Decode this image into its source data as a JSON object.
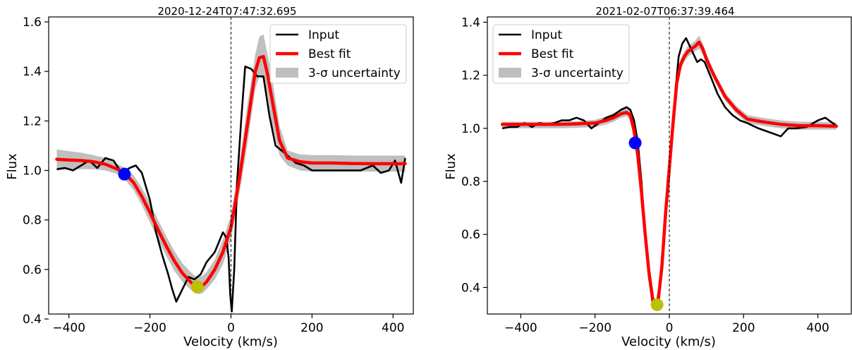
{
  "chart_data": [
    {
      "type": "line",
      "title": "2020-12-24T07:47:32.695",
      "xlabel": "Velocity (km/s)",
      "ylabel": "Flux",
      "xlim": [
        -450,
        450
      ],
      "ylim": [
        0.42,
        1.62
      ],
      "xticks": [
        -400,
        -200,
        0,
        200,
        400
      ],
      "xtick_labels": [
        "−400",
        "−200",
        "0",
        "200",
        "400"
      ],
      "yticks": [
        0.4,
        0.6,
        0.8,
        1.0,
        1.2,
        1.4,
        1.6
      ],
      "ytick_labels": [
        "0.4",
        "0.6",
        "0.8",
        "1.0",
        "1.2",
        "1.4",
        "1.6"
      ],
      "grid": false,
      "legend_position": "top-right",
      "vline_x": 0,
      "legend": [
        {
          "label": "Input",
          "kind": "line",
          "color": "#000000"
        },
        {
          "label": "Best fit",
          "kind": "line",
          "color": "#ff0000"
        },
        {
          "label": "3-σ uncertainty",
          "kind": "band",
          "color": "#bfbfbf"
        }
      ],
      "series": [
        {
          "name": "Input",
          "color": "#000000",
          "x": [
            -430,
            -410,
            -390,
            -370,
            -350,
            -330,
            -310,
            -290,
            -270,
            -250,
            -235,
            -220,
            -200,
            -185,
            -170,
            -155,
            -145,
            -135,
            -120,
            -105,
            -90,
            -75,
            -60,
            -50,
            -40,
            -30,
            -20,
            -12,
            -6,
            -2,
            2,
            8,
            15,
            25,
            35,
            50,
            65,
            80,
            95,
            110,
            125,
            140,
            160,
            180,
            200,
            230,
            260,
            290,
            320,
            350,
            370,
            390,
            405,
            420,
            430
          ],
          "y": [
            1.005,
            1.01,
            1.0,
            1.02,
            1.04,
            1.01,
            1.05,
            1.04,
            0.99,
            1.01,
            1.02,
            0.99,
            0.88,
            0.75,
            0.66,
            0.58,
            0.52,
            0.47,
            0.52,
            0.57,
            0.56,
            0.58,
            0.63,
            0.65,
            0.67,
            0.71,
            0.75,
            0.73,
            0.65,
            0.5,
            0.43,
            0.6,
            0.95,
            1.2,
            1.42,
            1.41,
            1.38,
            1.38,
            1.22,
            1.1,
            1.08,
            1.06,
            1.03,
            1.02,
            1.0,
            1.0,
            1.0,
            1.0,
            1.0,
            1.02,
            0.99,
            1.0,
            1.04,
            0.95,
            1.05
          ]
        },
        {
          "name": "Best fit",
          "color": "#ff0000",
          "x": [
            -430,
            -400,
            -370,
            -340,
            -310,
            -280,
            -260,
            -240,
            -220,
            -200,
            -180,
            -160,
            -140,
            -120,
            -100,
            -90,
            -80,
            -70,
            -60,
            -40,
            -20,
            0,
            20,
            40,
            60,
            70,
            80,
            90,
            100,
            120,
            140,
            170,
            200,
            250,
            300,
            350,
            400,
            430
          ],
          "y": [
            1.045,
            1.042,
            1.04,
            1.035,
            1.025,
            1.005,
            0.985,
            0.95,
            0.895,
            0.83,
            0.76,
            0.695,
            0.635,
            0.585,
            0.55,
            0.535,
            0.53,
            0.535,
            0.55,
            0.6,
            0.67,
            0.77,
            0.96,
            1.18,
            1.4,
            1.455,
            1.46,
            1.39,
            1.3,
            1.12,
            1.05,
            1.035,
            1.03,
            1.03,
            1.028,
            1.027,
            1.027,
            1.027
          ]
        },
        {
          "name": "3-σ uncertainty",
          "color": "#bfbfbf",
          "x": [
            -430,
            -400,
            -370,
            -340,
            -310,
            -280,
            -260,
            -240,
            -220,
            -200,
            -180,
            -160,
            -140,
            -120,
            -100,
            -90,
            -80,
            -70,
            -60,
            -40,
            -20,
            0,
            20,
            40,
            60,
            70,
            80,
            90,
            100,
            120,
            140,
            170,
            200,
            250,
            300,
            350,
            400,
            430
          ],
          "y_low": [
            1.0,
            1.005,
            1.005,
            1.005,
            1.0,
            0.985,
            0.96,
            0.92,
            0.86,
            0.79,
            0.72,
            0.655,
            0.595,
            0.55,
            0.52,
            0.505,
            0.5,
            0.505,
            0.52,
            0.56,
            0.62,
            0.72,
            0.9,
            1.1,
            1.33,
            1.38,
            1.37,
            1.31,
            1.2,
            1.06,
            1.02,
            1.0,
            0.995,
            0.995,
            0.995,
            0.995,
            0.995,
            0.995
          ],
          "y_high": [
            1.085,
            1.078,
            1.072,
            1.062,
            1.05,
            1.025,
            1.01,
            0.98,
            0.93,
            0.87,
            0.8,
            0.735,
            0.675,
            0.625,
            0.59,
            0.575,
            0.57,
            0.575,
            0.59,
            0.64,
            0.72,
            0.82,
            1.02,
            1.26,
            1.47,
            1.54,
            1.55,
            1.47,
            1.39,
            1.18,
            1.08,
            1.065,
            1.062,
            1.062,
            1.06,
            1.06,
            1.06,
            1.06
          ]
        }
      ],
      "markers": [
        {
          "x": -263,
          "y": 0.985,
          "color": "#0000ff"
        },
        {
          "x": -83,
          "y": 0.53,
          "color": "#bfbf00"
        }
      ]
    },
    {
      "type": "line",
      "title": "2021-02-07T06:37:39.464",
      "xlabel": "Velocity (km/s)",
      "ylabel": "Flux",
      "xlim": [
        -490,
        490
      ],
      "ylim": [
        0.3,
        1.42
      ],
      "xticks": [
        -400,
        -200,
        0,
        200,
        400
      ],
      "xtick_labels": [
        "−400",
        "−200",
        "0",
        "200",
        "400"
      ],
      "yticks": [
        0.4,
        0.6,
        0.8,
        1.0,
        1.2,
        1.4
      ],
      "ytick_labels": [
        "0.4",
        "0.6",
        "0.8",
        "1.0",
        "1.2",
        "1.4"
      ],
      "grid": false,
      "legend_position": "top-left",
      "vline_x": 0,
      "legend": [
        {
          "label": "Input",
          "kind": "line",
          "color": "#000000"
        },
        {
          "label": "Best fit",
          "kind": "line",
          "color": "#ff0000"
        },
        {
          "label": "3-σ uncertainty",
          "kind": "band",
          "color": "#bfbfbf"
        }
      ],
      "series": [
        {
          "name": "Input",
          "color": "#000000",
          "x": [
            -450,
            -430,
            -410,
            -390,
            -370,
            -350,
            -330,
            -310,
            -290,
            -270,
            -250,
            -230,
            -210,
            -190,
            -170,
            -150,
            -130,
            -115,
            -105,
            -95,
            -85,
            -75,
            -65,
            -55,
            -45,
            -35,
            -25,
            -15,
            -5,
            5,
            15,
            25,
            35,
            45,
            55,
            65,
            75,
            85,
            95,
            110,
            130,
            150,
            170,
            190,
            210,
            240,
            270,
            300,
            320,
            340,
            370,
            400,
            420,
            440,
            450
          ],
          "y": [
            1.0,
            1.005,
            1.005,
            1.02,
            1.005,
            1.02,
            1.015,
            1.02,
            1.03,
            1.03,
            1.04,
            1.03,
            1.0,
            1.02,
            1.04,
            1.05,
            1.07,
            1.08,
            1.07,
            1.03,
            0.95,
            0.8,
            0.6,
            0.44,
            0.34,
            0.33,
            0.42,
            0.6,
            0.78,
            0.95,
            1.12,
            1.27,
            1.32,
            1.34,
            1.31,
            1.28,
            1.25,
            1.26,
            1.25,
            1.2,
            1.13,
            1.08,
            1.05,
            1.03,
            1.02,
            1.0,
            0.985,
            0.97,
            1.0,
            1.0,
            1.005,
            1.03,
            1.04,
            1.02,
            1.01
          ]
        },
        {
          "name": "Best fit",
          "color": "#ff0000",
          "x": [
            -450,
            -400,
            -350,
            -300,
            -250,
            -200,
            -170,
            -150,
            -130,
            -115,
            -105,
            -95,
            -85,
            -75,
            -65,
            -55,
            -45,
            -38,
            -30,
            -20,
            -10,
            0,
            10,
            20,
            30,
            40,
            50,
            60,
            70,
            80,
            90,
            100,
            120,
            150,
            180,
            210,
            250,
            300,
            350,
            400,
            450
          ],
          "y": [
            1.015,
            1.015,
            1.015,
            1.015,
            1.017,
            1.02,
            1.03,
            1.04,
            1.055,
            1.06,
            1.05,
            0.99,
            0.9,
            0.76,
            0.6,
            0.46,
            0.36,
            0.33,
            0.35,
            0.48,
            0.68,
            0.85,
            1.02,
            1.17,
            1.24,
            1.27,
            1.29,
            1.3,
            1.31,
            1.325,
            1.3,
            1.26,
            1.2,
            1.12,
            1.07,
            1.035,
            1.025,
            1.015,
            1.01,
            1.01,
            1.008
          ]
        },
        {
          "name": "3-σ uncertainty",
          "color": "#bfbfbf",
          "x": [
            -450,
            -400,
            -350,
            -300,
            -250,
            -200,
            -170,
            -150,
            -130,
            -115,
            -105,
            -95,
            -85,
            -75,
            -65,
            -55,
            -45,
            -38,
            -30,
            -20,
            -10,
            0,
            10,
            20,
            30,
            40,
            50,
            60,
            70,
            80,
            90,
            100,
            120,
            150,
            180,
            210,
            250,
            300,
            350,
            400,
            450
          ],
          "y_low": [
            1.0,
            1.0,
            1.0,
            1.0,
            1.002,
            1.005,
            1.015,
            1.025,
            1.04,
            1.045,
            1.03,
            0.97,
            0.88,
            0.74,
            0.58,
            0.44,
            0.345,
            0.32,
            0.34,
            0.46,
            0.66,
            0.83,
            1.0,
            1.15,
            1.22,
            1.25,
            1.27,
            1.28,
            1.29,
            1.3,
            1.28,
            1.24,
            1.185,
            1.105,
            1.055,
            1.02,
            1.01,
            1.0,
            0.995,
            0.995,
            0.995
          ],
          "y_high": [
            1.025,
            1.025,
            1.025,
            1.025,
            1.027,
            1.032,
            1.045,
            1.058,
            1.072,
            1.078,
            1.07,
            1.01,
            0.92,
            0.78,
            0.62,
            0.48,
            0.375,
            0.345,
            0.365,
            0.5,
            0.7,
            0.87,
            1.04,
            1.19,
            1.26,
            1.29,
            1.31,
            1.32,
            1.33,
            1.35,
            1.32,
            1.28,
            1.215,
            1.135,
            1.085,
            1.05,
            1.04,
            1.03,
            1.025,
            1.025,
            1.022
          ]
        }
      ],
      "markers": [
        {
          "x": -92,
          "y": 0.945,
          "color": "#0000ff"
        },
        {
          "x": -33,
          "y": 0.335,
          "color": "#bfbf00"
        }
      ]
    }
  ]
}
